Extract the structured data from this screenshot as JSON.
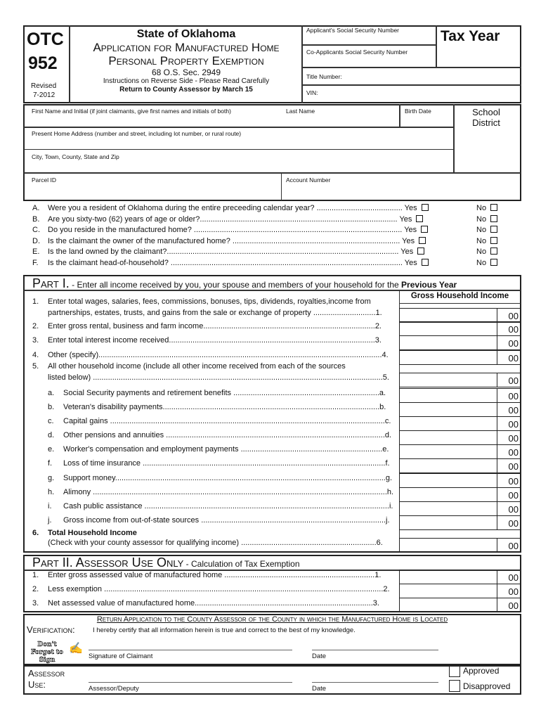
{
  "header": {
    "form_code": "OTC",
    "form_number": "952",
    "revised_label": "Revised",
    "revised_date": "7-2012",
    "state": "State of Oklahoma",
    "title_line1": "Application for Manufactured Home",
    "title_line2": "Personal Property Exemption",
    "statute": "68 O.S. Sec. 2949",
    "instructions": "Instructions on Reverse Side - Please Read Carefully",
    "return_by": "Return to County Assessor by March 15",
    "ssn_label": "Applicant's Social Security Number",
    "co_ssn_label": "Co-Applicants Social Security Number",
    "tax_year_label": "Tax Year",
    "title_number_label": "Title Number:",
    "vin_label": "VIN:"
  },
  "applicant": {
    "first_name_label": "First Name and Initial (if joint claimants, give first names and initials of both)",
    "last_name_label": "Last Name",
    "birth_date_label": "Birth Date",
    "school_district_label": "School District",
    "address_label": "Present Home Address (number and street, including lot number, or rural route)",
    "city_label": "City, Town, County, State and Zip",
    "parcel_label": "Parcel ID",
    "account_label": "Account Number"
  },
  "questions": [
    {
      "letter": "A.",
      "text": "Were you a resident of Oklahoma during the entire preceeding calendar year? ........................................ Yes"
    },
    {
      "letter": "B.",
      "text": "Are you sixty-two (62) years of age or older?............................................................................................ Yes"
    },
    {
      "letter": "C.",
      "text": "Do you reside in the manufactured home? ................................................................................................. Yes"
    },
    {
      "letter": "D.",
      "text": "Is the claimant the owner of the manufactured home? .............................................................................. Yes"
    },
    {
      "letter": "E.",
      "text": "Is the land owned by the claimant?............................................................................................................ Yes"
    },
    {
      "letter": "F.",
      "text": "Is the claimant head-of-household? ............................................................................................................ Yes"
    }
  ],
  "no_label": "No",
  "part1": {
    "title": "Part I.",
    "dash": " - ",
    "desc": "Enter all income received by you, your spouse and members of your household for the ",
    "desc_bold": "Previous Year",
    "column_header": "Gross Household Income",
    "cents": "00",
    "rows": [
      {
        "num": "1.",
        "line1": "Enter total wages, salaries, fees, commissions, bonuses, tips, dividends, royalties,income from",
        "text": "partnerships, estates, trusts, and gains from the sale or exchange of property .............................1."
      },
      {
        "num": "2.",
        "text": "Enter gross rental, business and farm income................................................................................2."
      },
      {
        "num": "3.",
        "text": "Enter total interest income received................................................................................................3."
      },
      {
        "num": "4.",
        "text": "Other (specify)....................................................................................................................................4."
      },
      {
        "num": "5.",
        "line1": "All other household income (include all other income received from each of the sources",
        "text": "listed below) .......................................................................................................................................5."
      },
      {
        "num": "a.",
        "sub": true,
        "text": "Social Security payments and retirement benefits ....................................................................a."
      },
      {
        "num": "b.",
        "sub": true,
        "text": "Veteran's disability payments.....................................................................................................b."
      },
      {
        "num": "c.",
        "sub": true,
        "text": "Capital gains ................................................................................................................................c."
      },
      {
        "num": "d.",
        "sub": true,
        "text": "Other pensions and annuities ......................................................................................................d."
      },
      {
        "num": "e.",
        "sub": true,
        "text": "Worker's compensation and employment payments ..................................................................e."
      },
      {
        "num": "f.",
        "sub": true,
        "text": "Loss of time insurance .................................................................................................................f."
      },
      {
        "num": "g.",
        "sub": true,
        "text": "Support money..............................................................................................................................g."
      },
      {
        "num": "h.",
        "sub": true,
        "text": "Alimony .........................................................................................................................................h."
      },
      {
        "num": "i.",
        "sub": true,
        "text": "Cash public assistance ..................................................................................................................i."
      },
      {
        "num": "j.",
        "sub": true,
        "text": "Gross income from out-of-state sources ......................................................................................j."
      },
      {
        "num": "6.",
        "line1": "Total Household Income",
        "text": "(Check with your county assessor for qualifying income) ...............................................................6."
      }
    ]
  },
  "part2": {
    "title": "Part II. Assessor Use Only",
    "dash": " - ",
    "desc": "Calculation of Tax Exemption",
    "rows": [
      {
        "num": "1.",
        "text": "Enter gross assessed value of manufactured home ......................................................................1."
      },
      {
        "num": "2.",
        "text": "Less exemption ..................................................................................................................................2."
      },
      {
        "num": "3.",
        "text": "Net assessed value of manufactured home...................................................................................3."
      }
    ]
  },
  "verification": {
    "return_notice": "Return Application to the County Assessor of the County in which the Manufactured Home is Located",
    "label": "Verification:",
    "certify": "I hereby certify that all information herein is true and correct to the best of my knowledge.",
    "reminder": "Don't Forget to Sign",
    "signature_label": "Signature of Claimant",
    "date_label": "Date"
  },
  "assessor": {
    "label_line1": "Assessor",
    "label_line2": "Use:",
    "deputy_label": "Assessor/Deputy",
    "date_label": "Date",
    "approved": "Approved",
    "disapproved": "Disapproved"
  }
}
